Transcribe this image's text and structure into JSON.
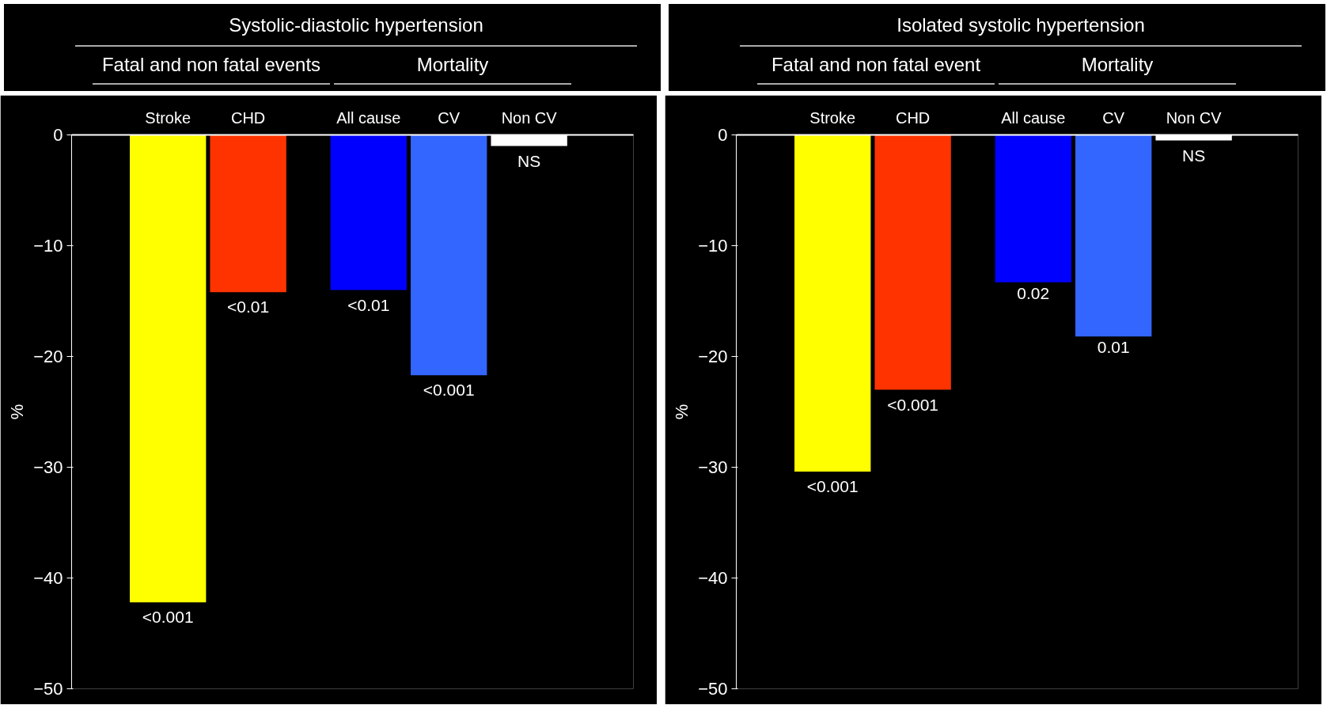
{
  "chart_data": [
    {
      "type": "bar",
      "title": "Systolic-diastolic hypertension",
      "ylabel": "%",
      "categories": [
        "Stroke",
        "CHD",
        "All cause",
        "CV",
        "Non CV"
      ],
      "values": [
        -42.2,
        -14.2,
        -14.0,
        -21.7,
        -1.0
      ],
      "colors": [
        "#ffff00",
        "#ff3300",
        "#0000ff",
        "#3366ff",
        "#ffffff"
      ],
      "annotations": [
        "Fatal and non fatal events",
        "Mortality",
        {
          "text": "<0.001",
          "x": "Stroke",
          "y": -42.2
        },
        {
          "text": "<0.01",
          "x": "CHD",
          "y": -14.2
        },
        {
          "text": "<0.01",
          "x": "All cause",
          "y": -14.0
        },
        {
          "text": "<0.001",
          "x": "CV",
          "y": -21.7
        },
        {
          "text": "NS",
          "x": "Non CV",
          "y": -1.0
        }
      ],
      "ylim": [
        -50,
        0
      ],
      "yticks": [
        0,
        -10,
        -20,
        -30,
        -40,
        -50
      ],
      "grid": false
    },
    {
      "type": "bar",
      "title": "Isolated systolic hypertension",
      "ylabel": "%",
      "categories": [
        "Stroke",
        "CHD",
        "All cause",
        "CV",
        "Non CV"
      ],
      "values": [
        -30.4,
        -23.0,
        -13.3,
        -18.2,
        -0.5
      ],
      "colors": [
        "#ffff00",
        "#ff3300",
        "#0000ff",
        "#3366ff",
        "#ffffff"
      ],
      "annotations": [
        "Fatal and non fatal event",
        "Mortality",
        {
          "text": "<0.001",
          "x": "Stroke",
          "y": -30.4
        },
        {
          "text": "<0.001",
          "x": "CHD",
          "y": -23.0
        },
        {
          "text": "0.02",
          "x": "All cause",
          "y": -13.3
        },
        {
          "text": "0.01",
          "x": "CV",
          "y": -18.2
        },
        {
          "text": "NS",
          "x": "Non CV",
          "y": -0.5
        }
      ],
      "ylim": [
        -50,
        0
      ],
      "yticks": [
        0,
        -10,
        -20,
        -30,
        -40,
        -50
      ],
      "grid": false
    }
  ]
}
